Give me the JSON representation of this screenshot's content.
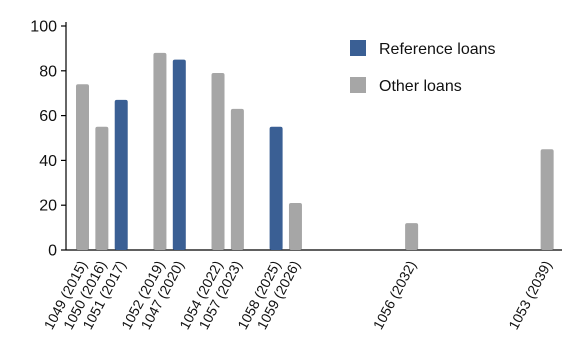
{
  "chart_data": {
    "type": "bar",
    "categories": [
      "1049 (2015)",
      "1050 (2016)",
      "1051 (2017)",
      "1052 (2019)",
      "1047 (2020)",
      "1054 (2022)",
      "1057 (2023)",
      "1058 (2025)",
      "1059 (2026)",
      "1056 (2032)",
      "1053 (2039)"
    ],
    "x_years": [
      2015,
      2016,
      2017,
      2019,
      2020,
      2022,
      2023,
      2025,
      2026,
      2032,
      2039
    ],
    "values": [
      74,
      55,
      67,
      88,
      85,
      79,
      63,
      55,
      21,
      12,
      45
    ],
    "series_membership": [
      "Other loans",
      "Other loans",
      "Reference loans",
      "Other loans",
      "Reference loans",
      "Other loans",
      "Other loans",
      "Reference loans",
      "Other loans",
      "Other loans",
      "Other loans"
    ],
    "series": [
      {
        "name": "Reference loans",
        "color": "#3a5f94"
      },
      {
        "name": "Other loans",
        "color": "#a6a6a6"
      }
    ],
    "ylim": [
      0,
      100
    ],
    "yticks": [
      0,
      20,
      40,
      60,
      80,
      100
    ],
    "xlim_years": [
      2014,
      2040
    ],
    "grid": false,
    "legend_position": "top-right",
    "title": "",
    "xlabel": "",
    "ylabel": ""
  }
}
